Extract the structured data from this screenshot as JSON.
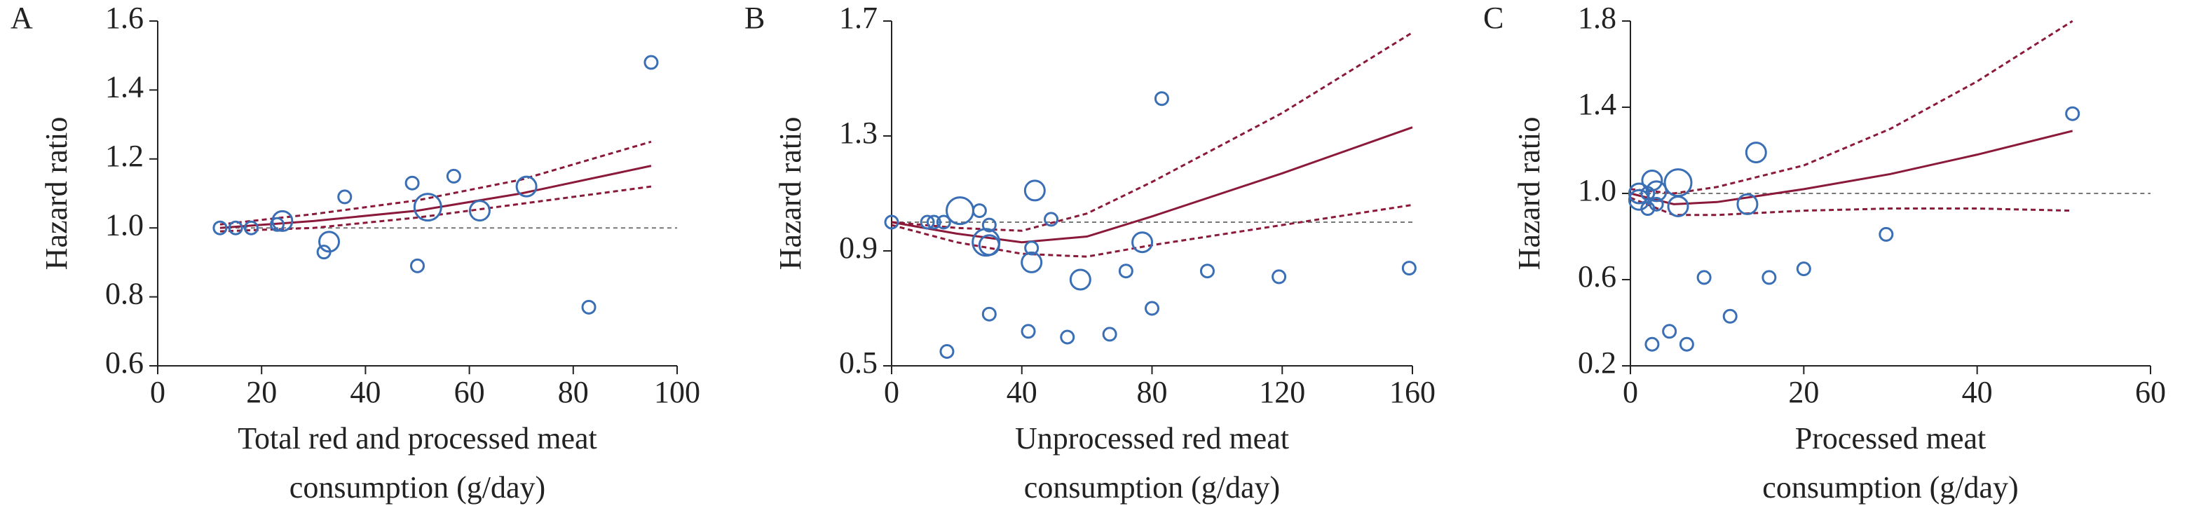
{
  "chart_data": [
    {
      "type": "scatter",
      "panel": "A",
      "ylabel": "Hazard ratio",
      "xlabel": [
        "Total red and processed meat",
        "consumption (g/day)"
      ],
      "xlim": [
        0,
        100
      ],
      "xticks": [
        0,
        20,
        40,
        60,
        80,
        100
      ],
      "ylim": [
        0.6,
        1.6
      ],
      "yticks": [
        0.6,
        0.8,
        {
          "value": 1,
          "label": "1.0"
        },
        1.2,
        1.4,
        1.6
      ],
      "color": "#3a6fb5",
      "curve_color": "#8b1a3a",
      "reference": 1,
      "x": [
        12,
        15,
        18,
        23,
        24,
        32,
        33,
        36,
        49,
        50,
        52,
        57,
        62,
        71,
        83,
        95
      ],
      "values": [
        1.0,
        1.0,
        1.0,
        1.01,
        1.02,
        0.93,
        0.96,
        1.09,
        1.13,
        0.89,
        1.06,
        1.15,
        1.05,
        1.12,
        0.77,
        1.48
      ],
      "sizes": [
        1,
        1,
        1,
        1,
        2,
        1,
        2,
        1,
        1,
        1,
        3,
        1,
        2,
        2,
        1,
        1
      ],
      "curve": {
        "x": [
          12,
          30,
          50,
          70,
          95
        ],
        "fit": [
          1.0,
          1.02,
          1.05,
          1.1,
          1.18
        ],
        "upper": [
          1.01,
          1.04,
          1.08,
          1.14,
          1.25
        ],
        "lower": [
          0.99,
          1.0,
          1.03,
          1.07,
          1.12
        ]
      }
    },
    {
      "type": "scatter",
      "panel": "B",
      "ylabel": "Hazard ratio",
      "xlabel": [
        "Unprocessed red meat",
        "consumption (g/day)"
      ],
      "xlim": [
        0,
        160
      ],
      "xticks": [
        0,
        40,
        80,
        120,
        160
      ],
      "ylim": [
        0.5,
        1.7
      ],
      "yticks": [
        0.5,
        0.9,
        1.3,
        1.7
      ],
      "color": "#3a6fb5",
      "curve_color": "#8b1a3a",
      "reference": 1,
      "x": [
        0,
        11,
        13,
        16,
        17,
        21,
        27,
        29,
        30,
        30,
        30,
        42,
        43,
        43,
        44,
        49,
        54,
        58,
        67,
        72,
        77,
        80,
        83,
        97,
        119,
        159
      ],
      "values": [
        1.0,
        1.0,
        1.0,
        1.0,
        0.55,
        1.04,
        1.04,
        0.93,
        0.92,
        0.99,
        0.68,
        0.62,
        0.91,
        0.86,
        1.11,
        1.01,
        0.6,
        0.8,
        0.61,
        0.83,
        0.93,
        0.7,
        1.43,
        0.83,
        0.81,
        0.84
      ],
      "sizes": [
        1,
        1,
        1,
        1,
        1,
        3,
        1,
        3,
        2,
        1,
        1,
        1,
        1,
        2,
        2,
        1,
        1,
        2,
        1,
        1,
        2,
        1,
        1,
        1,
        1,
        1
      ],
      "curve": {
        "x": [
          0,
          20,
          40,
          60,
          80,
          120,
          160
        ],
        "fit": [
          1.0,
          0.96,
          0.93,
          0.95,
          1.02,
          1.17,
          1.33
        ],
        "upper": [
          1.0,
          0.98,
          0.97,
          1.03,
          1.14,
          1.38,
          1.66
        ],
        "lower": [
          0.99,
          0.93,
          0.89,
          0.88,
          0.92,
          0.99,
          1.06
        ]
      }
    },
    {
      "type": "scatter",
      "panel": "C",
      "ylabel": "Hazard ratio",
      "xlabel": [
        "Processed meat",
        "consumption (g/day)"
      ],
      "xlim": [
        0,
        60
      ],
      "xticks": [
        0,
        20,
        40,
        60
      ],
      "ylim": [
        0.2,
        1.8
      ],
      "yticks": [
        0.2,
        0.6,
        {
          "value": 1,
          "label": "1.0"
        },
        1.4,
        1.8
      ],
      "color": "#3a6fb5",
      "curve_color": "#8b1a3a",
      "reference": 1,
      "x": [
        1,
        1,
        2,
        2,
        2.5,
        2.5,
        3,
        3,
        4.5,
        5.5,
        5.5,
        6.5,
        8.5,
        11.5,
        13.5,
        14.5,
        16,
        20,
        29.5,
        51
      ],
      "values": [
        0.97,
        1.0,
        0.93,
        1.0,
        1.06,
        0.3,
        1.01,
        0.95,
        0.36,
        1.05,
        0.94,
        0.3,
        0.61,
        0.43,
        0.95,
        1.19,
        0.61,
        0.65,
        0.81,
        1.37
      ],
      "sizes": [
        2,
        2,
        1,
        1,
        2,
        1,
        2,
        1,
        1,
        3,
        2,
        1,
        1,
        1,
        2,
        2,
        1,
        1,
        1,
        1
      ],
      "curve": {
        "x": [
          0,
          5,
          10,
          20,
          30,
          40,
          51
        ],
        "fit": [
          1.0,
          0.95,
          0.96,
          1.02,
          1.09,
          1.18,
          1.29
        ],
        "upper": [
          1.02,
          1.0,
          1.03,
          1.13,
          1.3,
          1.52,
          1.8
        ],
        "lower": [
          0.98,
          0.9,
          0.9,
          0.92,
          0.93,
          0.93,
          0.92
        ]
      }
    }
  ]
}
